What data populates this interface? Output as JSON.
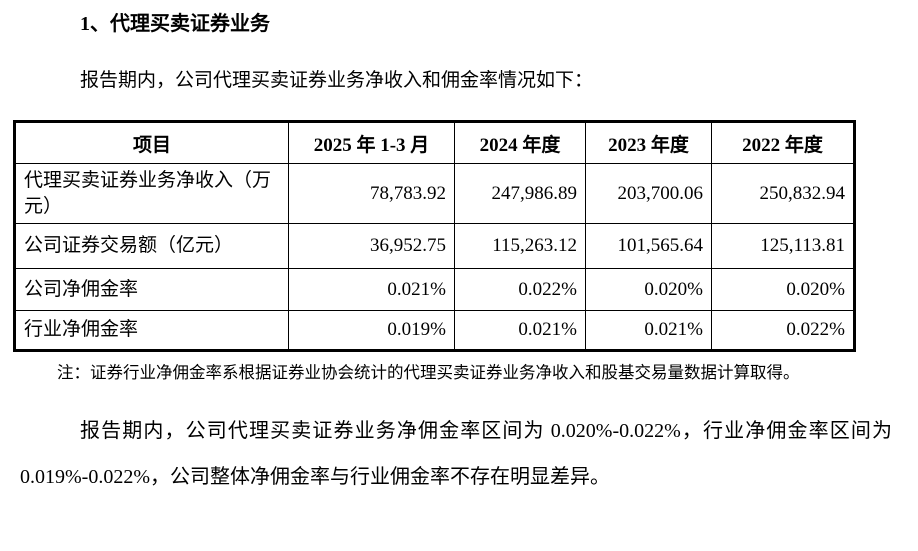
{
  "page": {
    "title": "1、代理买卖证券业务",
    "intro": "报告期内，公司代理买卖证券业务净收入和佣金率情况如下：",
    "note": "注：证券行业净佣金率系根据证券业协会统计的代理买卖证券业务净收入和股基交易量数据计算取得。",
    "closing": "报告期内，公司代理买卖证券业务净佣金率区间为 0.020%-0.022%，行业净佣金率区间为 0.019%-0.022%，公司整体净佣金率与行业佣金率不存在明显差异。"
  },
  "table": {
    "headers": [
      "项目",
      "2025 年 1-3 月",
      "2024 年度",
      "2023 年度",
      "2022 年度"
    ],
    "rows": [
      {
        "label": "代理买卖证券业务净收入（万元）",
        "values": [
          "78,783.92",
          "247,986.89",
          "203,700.06",
          "250,832.94"
        ]
      },
      {
        "label": "公司证券交易额（亿元）",
        "values": [
          "36,952.75",
          "115,263.12",
          "101,565.64",
          "125,113.81"
        ]
      },
      {
        "label": "公司净佣金率",
        "values": [
          "0.021%",
          "0.022%",
          "0.020%",
          "0.020%"
        ]
      },
      {
        "label": "行业净佣金率",
        "values": [
          "0.019%",
          "0.021%",
          "0.021%",
          "0.022%"
        ]
      }
    ]
  },
  "colors": {
    "text": "#000000",
    "background": "#ffffff",
    "table_border": "#000000"
  }
}
